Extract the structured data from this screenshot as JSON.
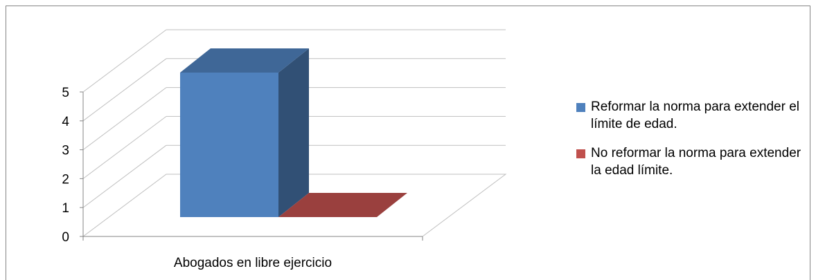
{
  "chart_data": {
    "type": "bar",
    "categories": [
      "Abogados en libre ejercicio"
    ],
    "series": [
      {
        "name": "Reformar la norma para extender el límite de edad.",
        "values": [
          5
        ],
        "color": "#4F81BD"
      },
      {
        "name": "No reformar la norma para extender la edad límite.",
        "values": [
          0
        ],
        "color": "#C0504D"
      }
    ],
    "ylim": [
      0,
      5
    ],
    "yticks": [
      "0",
      "1",
      "2",
      "3",
      "4",
      "5"
    ],
    "grid": true,
    "style": "3d",
    "legend_position": "right",
    "title": "",
    "xlabel": "",
    "ylabel": ""
  }
}
